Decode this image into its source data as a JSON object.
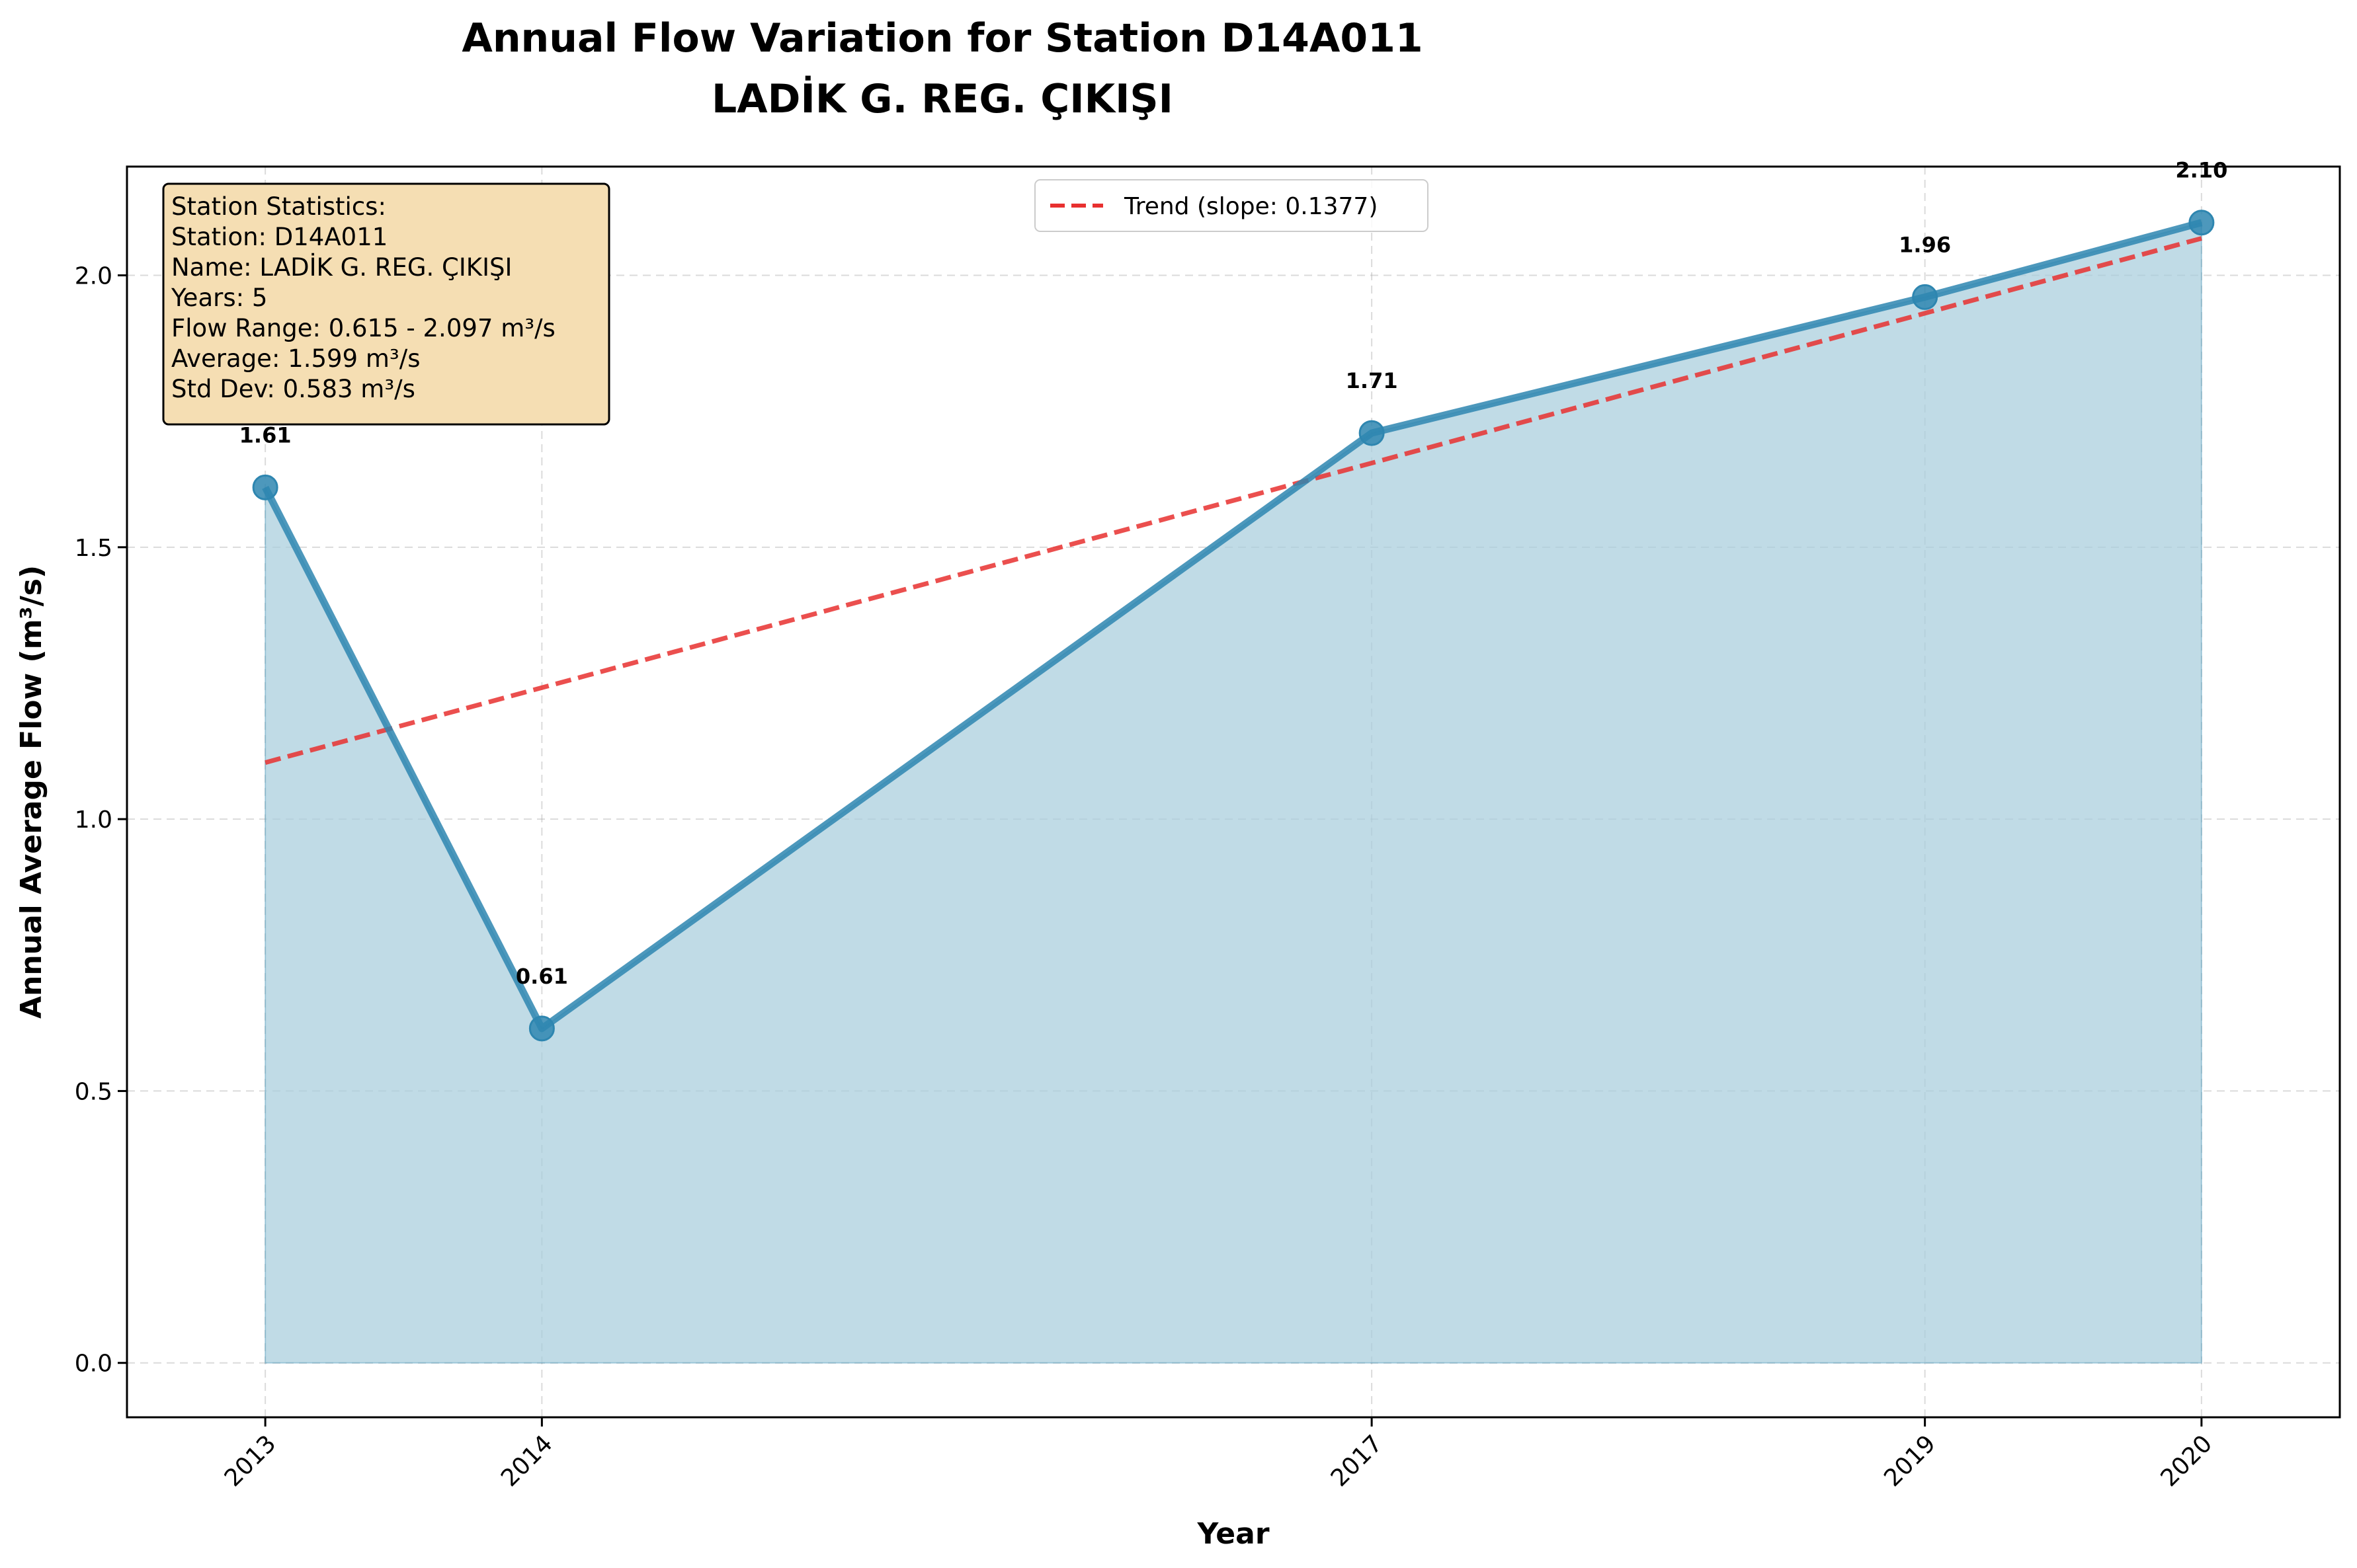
{
  "chart_data": {
    "type": "line",
    "title": "Annual Flow Variation for Station D14A011",
    "subtitle": "LADİK G. REG. ÇIKIŞI",
    "xlabel": "Year",
    "ylabel": "Annual Average Flow (m³/s)",
    "x": [
      2013,
      2014,
      2017,
      2019,
      2020
    ],
    "y": [
      1.61,
      0.615,
      1.71,
      1.96,
      2.097
    ],
    "data_labels": [
      "1.61",
      "0.61",
      "1.71",
      "1.96",
      "2.10"
    ],
    "xticks": [
      "2013",
      "2014",
      "2017",
      "2019",
      "2020"
    ],
    "yticks": [
      "0.0",
      "0.5",
      "1.0",
      "1.5",
      "2.0"
    ],
    "ytick_values": [
      0.0,
      0.5,
      1.0,
      1.5,
      2.0
    ],
    "xlim": [
      2012.5,
      2020.5
    ],
    "ylim": [
      -0.1,
      2.2
    ],
    "grid": true,
    "series": [
      {
        "values": [
          1.61,
          0.615,
          1.71,
          1.96,
          2.097
        ],
        "color": "#2e86b0",
        "fill_color": "#a8cddc"
      }
    ],
    "trend": {
      "label": "Trend (slope: 0.1377)",
      "slope": 0.1377,
      "start": [
        2013,
        1.104
      ],
      "end": [
        2020,
        2.068
      ],
      "color": "#e8302f"
    },
    "legend_position": "top-center",
    "stats_box": {
      "lines": [
        "Station Statistics:",
        "Station: D14A011",
        "Name: LADİK G. REG. ÇIKIŞI",
        "Years: 5",
        "Flow Range: 0.615 - 2.097 m³/s",
        "Average: 1.599 m³/s",
        "Std Dev: 0.583 m³/s"
      ],
      "background": "#f5deb3"
    }
  }
}
